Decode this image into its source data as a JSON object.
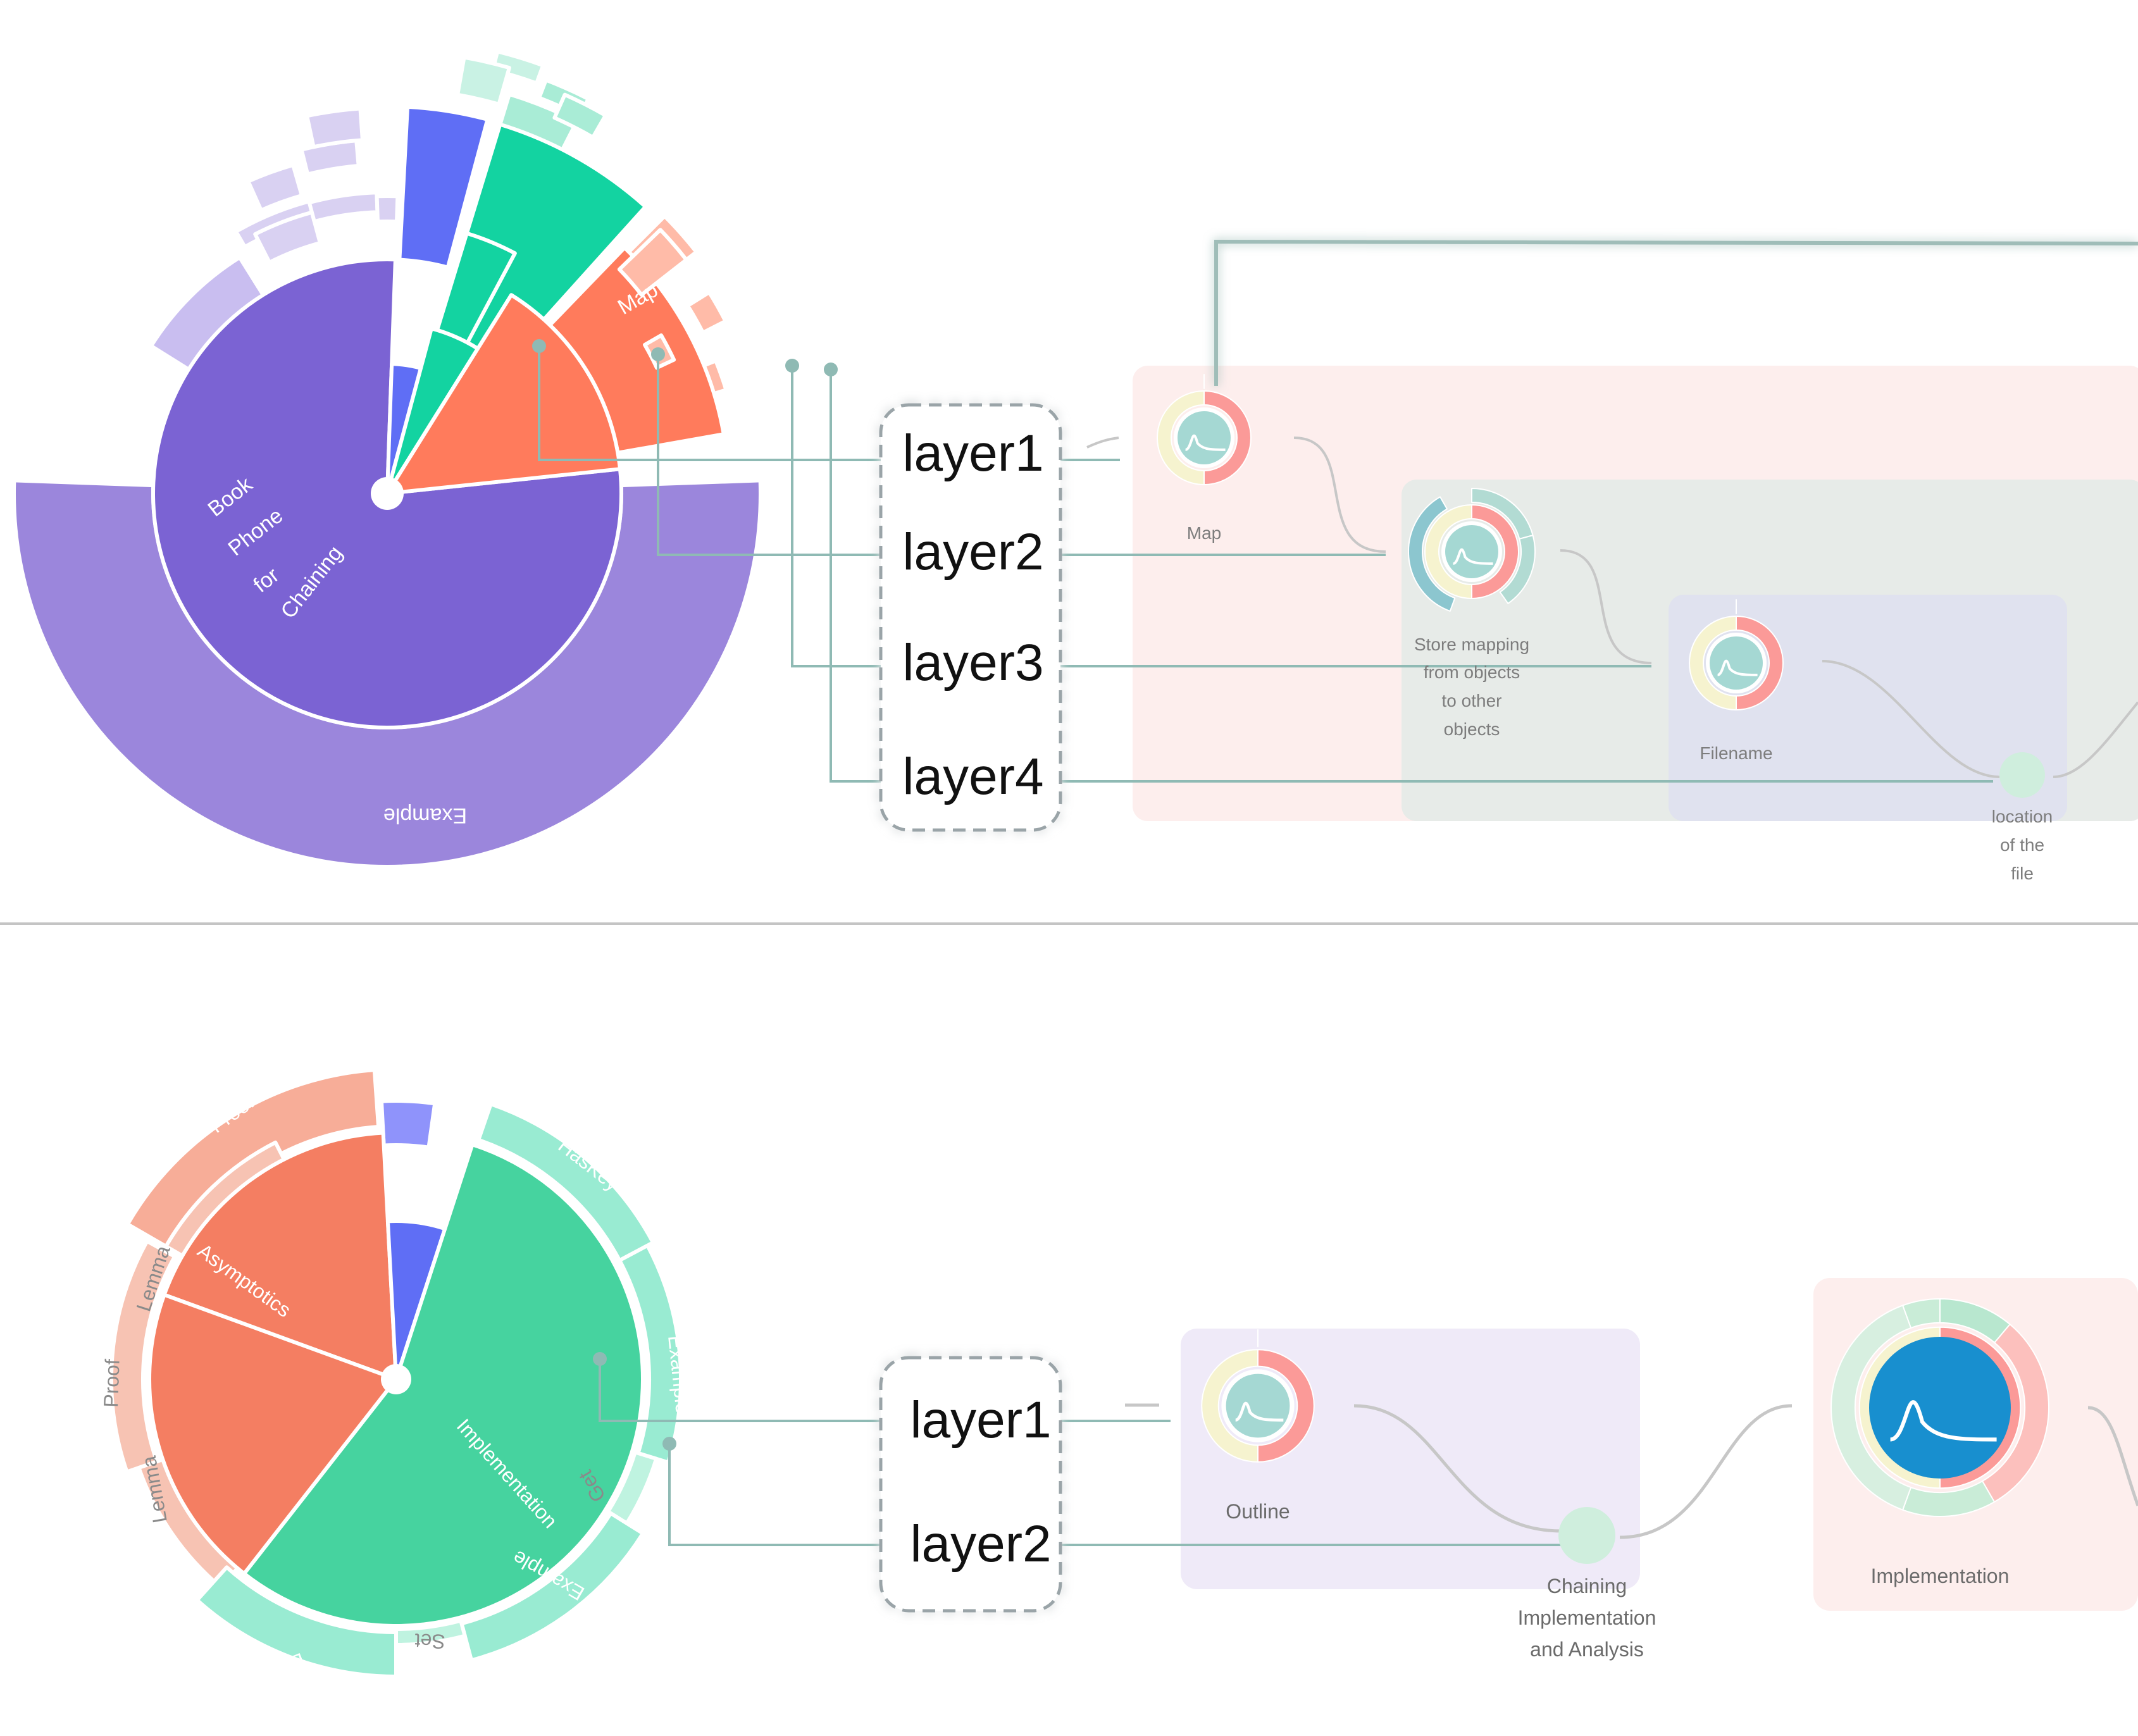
{
  "top_panel": {
    "sunburst_labels": {
      "inner_phrase": [
        "Book",
        "Phone",
        "for",
        "Chaining"
      ],
      "map": "Map",
      "outer_example": "Example"
    },
    "layers": [
      "layer1",
      "layer2",
      "layer3",
      "layer4"
    ],
    "nodes": {
      "map": "Map",
      "store_mapping": [
        "Store mapping",
        "from objects",
        "to other",
        "objects"
      ],
      "filename": "Filename",
      "location": [
        "location",
        "of the",
        "file"
      ]
    }
  },
  "bottom_panel": {
    "sunburst_labels": {
      "proof_top": "Proof",
      "asymptotics": "Asymptotics",
      "lemma_upper": "Lemma",
      "proof_left": "Proof",
      "lemma_lower": "Lemma",
      "haskey": "HasKey",
      "example_right": "Example",
      "implementation": "Implementation",
      "get": "Get",
      "example_lower": "Example",
      "set": "Set",
      "example_bottom": "Example"
    },
    "layers": [
      "layer1",
      "layer2"
    ],
    "nodes": {
      "outline": "Outline",
      "chaining": [
        "Chaining",
        "Implementation",
        "and Analysis"
      ],
      "implementation": "Implementation"
    }
  },
  "colors": {
    "purple_dark": "#7b63d3",
    "purple_mid": "#9b86dc",
    "purple_light": "#d9d1f2",
    "blue": "#5f6ef5",
    "teal": "#13d3a1",
    "teal_light": "#a9ecd6",
    "coral": "#ff7b5c",
    "coral_light": "#ffbba8",
    "green": "#46d39f",
    "green_light": "#99ebd2",
    "salmon": "#f47e62",
    "salmon_light": "#f7ad98",
    "connector": "#8fbab4",
    "panel_pink": "#fdeeed",
    "panel_grey": "#e7ebe8",
    "panel_lavender": "#e0e2ef",
    "panel_purple": "#efeaf8",
    "node_blue": "#188fcf"
  }
}
